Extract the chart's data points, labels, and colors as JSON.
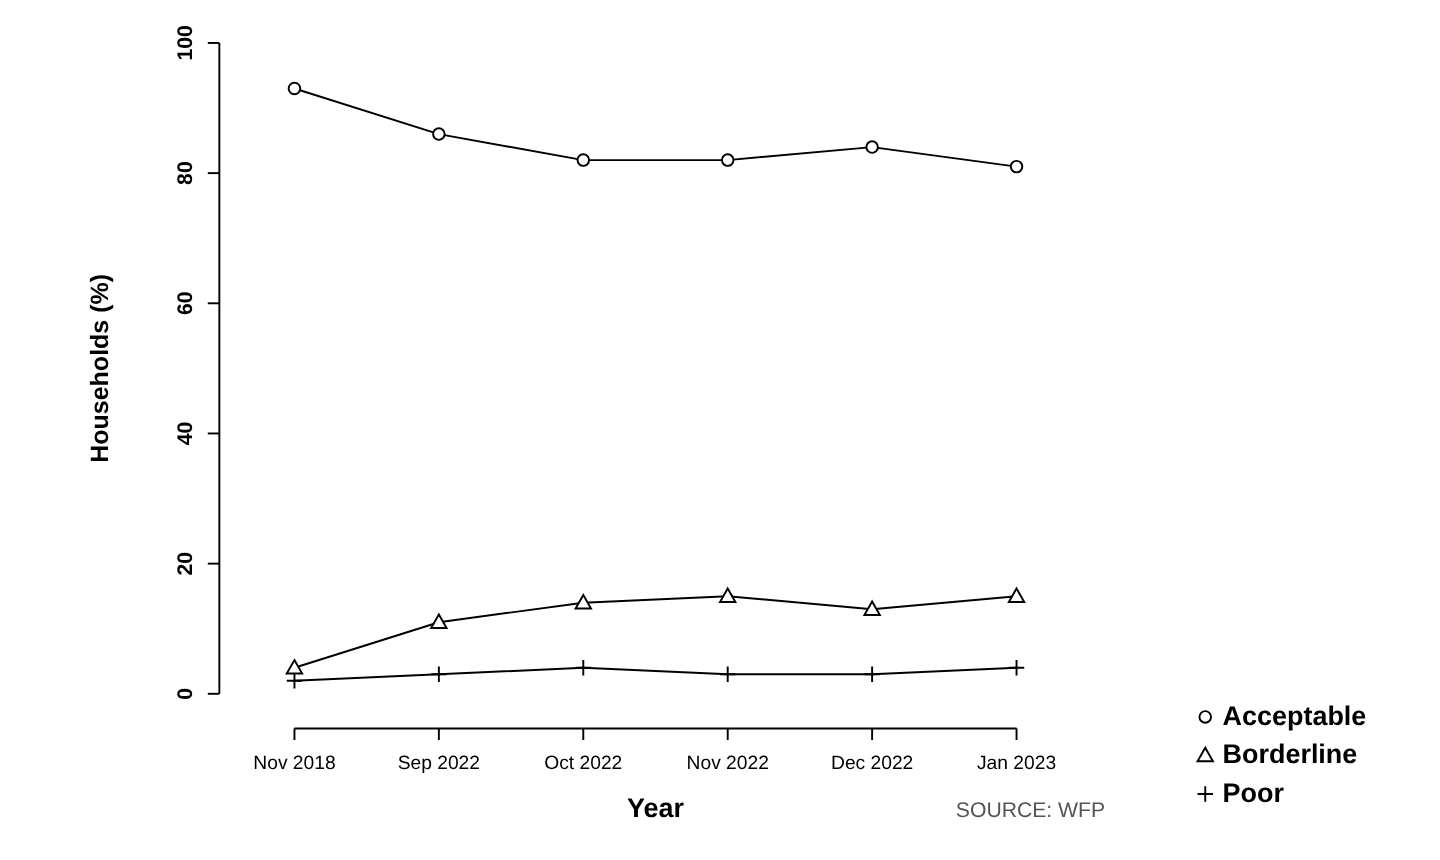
{
  "chart_data": {
    "type": "line",
    "xlabel": "Year",
    "ylabel": "Households (%)",
    "categories": [
      "Nov 2018",
      "Sep 2022",
      "Oct 2022",
      "Nov 2022",
      "Dec 2022",
      "Jan 2023"
    ],
    "series": [
      {
        "name": "Acceptable",
        "color": "#000000",
        "marker": "circle",
        "values": [
          93,
          86,
          82,
          82,
          84,
          81
        ]
      },
      {
        "name": "Borderline",
        "color": "#000000",
        "marker": "triangle",
        "values": [
          4,
          11,
          14,
          15,
          13,
          15
        ]
      },
      {
        "name": "Poor",
        "color": "#000000",
        "marker": "cross",
        "values": [
          2,
          3,
          4,
          3,
          3,
          4
        ]
      }
    ],
    "ylim": [
      0,
      100
    ],
    "yticks": [
      0,
      20,
      40,
      60,
      80,
      100
    ],
    "grid": false,
    "legend": "right",
    "annotations": [
      "SOURCE: WFP"
    ]
  }
}
